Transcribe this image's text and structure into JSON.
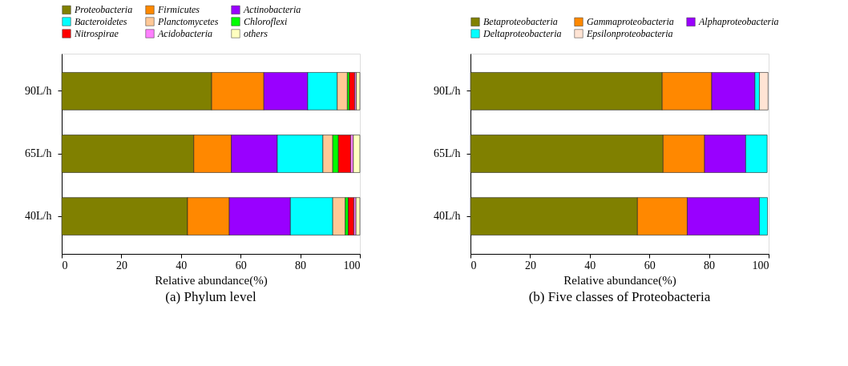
{
  "chart_data": [
    {
      "type": "bar",
      "orientation": "horizontal",
      "stacked": true,
      "title": "(a) Phylum level",
      "xlabel": "Relative abundance(%)",
      "categories": [
        "90L/h",
        "65L/h",
        "40L/h"
      ],
      "xlim": [
        0,
        100
      ],
      "xticks": [
        0,
        20,
        40,
        60,
        80,
        100
      ],
      "grid": false,
      "legend": "top",
      "series": [
        {
          "name": "Proteobacteria",
          "color": "#808000",
          "values": [
            50.3,
            44.3,
            42.2
          ]
        },
        {
          "name": "Firmicutes",
          "color": "#ff8800",
          "values": [
            17.5,
            12.6,
            14.0
          ]
        },
        {
          "name": "Actinobacteria",
          "color": "#9900ff",
          "values": [
            14.7,
            15.4,
            20.5
          ]
        },
        {
          "name": "Bacteroidetes",
          "color": "#00ffff",
          "values": [
            9.9,
            15.3,
            14.2
          ]
        },
        {
          "name": "Planctomycetes",
          "color": "#ffc896",
          "values": [
            3.4,
            3.3,
            4.2
          ]
        },
        {
          "name": "Chloroflexi",
          "color": "#00ff00",
          "values": [
            0.7,
            1.9,
            1.0
          ]
        },
        {
          "name": "Nitrospirae",
          "color": "#ff0000",
          "values": [
            1.8,
            4.1,
            1.9
          ]
        },
        {
          "name": "Acidobacteria",
          "color": "#ff80ff",
          "values": [
            0.5,
            0.9,
            0.7
          ]
        },
        {
          "name": "others",
          "color": "#ffffc0",
          "values": [
            1.2,
            2.2,
            1.3
          ]
        }
      ]
    },
    {
      "type": "bar",
      "orientation": "horizontal",
      "stacked": true,
      "title": "(b) Five classes of Proteobacteria",
      "xlabel": "Relative abundance(%)",
      "categories": [
        "90L/h",
        "65L/h",
        "40L/h"
      ],
      "xlim": [
        0,
        100
      ],
      "xticks": [
        0,
        20,
        40,
        60,
        80,
        100
      ],
      "grid": false,
      "legend": "top",
      "series": [
        {
          "name": "Betaproteobacteria",
          "color": "#808000",
          "values": [
            64.3,
            64.6,
            56.0
          ]
        },
        {
          "name": "Gammaproteobacteria",
          "color": "#ff8800",
          "values": [
            16.6,
            13.9,
            16.7
          ]
        },
        {
          "name": "Alphaproteobacteria",
          "color": "#9900ff",
          "values": [
            14.5,
            13.8,
            24.2
          ]
        },
        {
          "name": "Deltaproteobacteria",
          "color": "#00ffff",
          "values": [
            1.5,
            7.2,
            2.7
          ]
        },
        {
          "name": "Epsilonproteobacteria",
          "color": "#ffe4d4",
          "values": [
            2.9,
            null,
            null
          ]
        }
      ]
    }
  ]
}
